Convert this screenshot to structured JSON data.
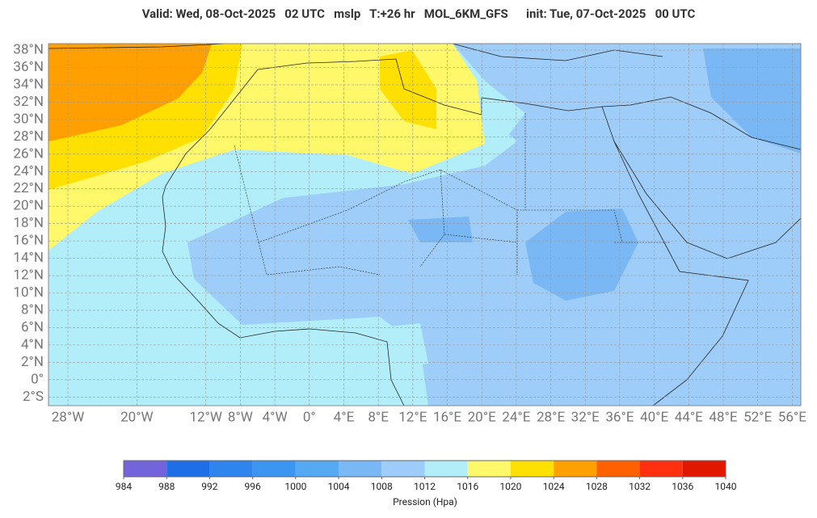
{
  "header": {
    "title": "Valid: Wed, 08-Oct-2025   02 UTC   mslp   T:+26 hr   MOL_6KM_GFS      init: Tue, 07-Oct-2025   00 UTC"
  },
  "map": {
    "xlim": [
      -30.25,
      57
    ],
    "ylim": [
      -3,
      38.75
    ],
    "xticks": [
      {
        "value": -28,
        "label": "28°W"
      },
      {
        "value": -20,
        "label": "20°W"
      },
      {
        "value": -12,
        "label": "12°W"
      },
      {
        "value": -8,
        "label": "8°W"
      },
      {
        "value": -4,
        "label": "4°W"
      },
      {
        "value": 0,
        "label": "0°"
      },
      {
        "value": 4,
        "label": "4°E"
      },
      {
        "value": 8,
        "label": "8°E"
      },
      {
        "value": 12,
        "label": "12°E"
      },
      {
        "value": 16,
        "label": "16°E"
      },
      {
        "value": 20,
        "label": "20°E"
      },
      {
        "value": 24,
        "label": "24°E"
      },
      {
        "value": 28,
        "label": "28°E"
      },
      {
        "value": 32,
        "label": "32°E"
      },
      {
        "value": 36,
        "label": "36°E"
      },
      {
        "value": 40,
        "label": "40°E"
      },
      {
        "value": 44,
        "label": "44°E"
      },
      {
        "value": 48,
        "label": "48°E"
      },
      {
        "value": 52,
        "label": "52°E"
      },
      {
        "value": 56,
        "label": "56°E"
      }
    ],
    "yticks": [
      {
        "value": 38,
        "label": "38°N"
      },
      {
        "value": 36,
        "label": "36°N"
      },
      {
        "value": 34,
        "label": "34°N"
      },
      {
        "value": 32,
        "label": "32°N"
      },
      {
        "value": 30,
        "label": "30°N"
      },
      {
        "value": 28,
        "label": "28°N"
      },
      {
        "value": 26,
        "label": "26°N"
      },
      {
        "value": 24,
        "label": "24°N"
      },
      {
        "value": 22,
        "label": "22°N"
      },
      {
        "value": 20,
        "label": "20°N"
      },
      {
        "value": 18,
        "label": "18°N"
      },
      {
        "value": 16,
        "label": "16°N"
      },
      {
        "value": 14,
        "label": "14°N"
      },
      {
        "value": 12,
        "label": "12°N"
      },
      {
        "value": 10,
        "label": "10°N"
      },
      {
        "value": 8,
        "label": "8°N"
      },
      {
        "value": 6,
        "label": "6°N"
      },
      {
        "value": 4,
        "label": "4°N"
      },
      {
        "value": 2,
        "label": "2°N"
      },
      {
        "value": 0,
        "label": "0°"
      },
      {
        "value": -2,
        "label": "2°S"
      }
    ]
  },
  "colorbar": {
    "label": "Pression (Hpa)",
    "levels": [
      984,
      988,
      992,
      996,
      1000,
      1004,
      1008,
      1012,
      1016,
      1020,
      1024,
      1028,
      1032,
      1036,
      1040
    ],
    "colors": [
      "#7464dc",
      "#1e6ee8",
      "#2f84ee",
      "#3c95f0",
      "#55a8f2",
      "#7ab8f5",
      "#9dcdf8",
      "#b2eefa",
      "#fff86a",
      "#ffe000",
      "#ffa000",
      "#ff6000",
      "#ff3010",
      "#e01800"
    ]
  }
}
